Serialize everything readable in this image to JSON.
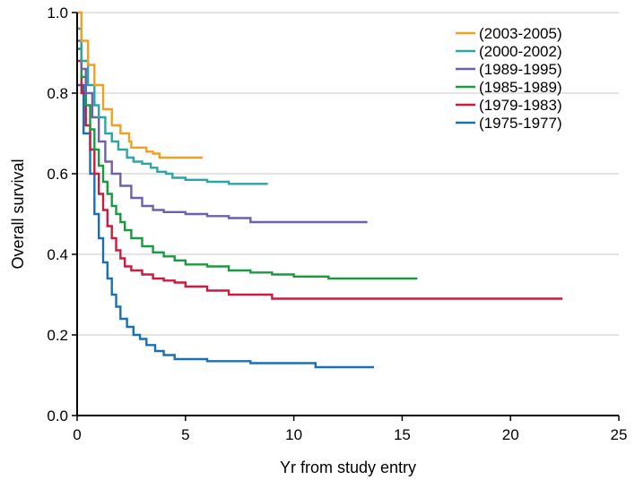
{
  "chart_data": {
    "type": "line",
    "step": true,
    "title": "",
    "xlabel": "Yr from study entry",
    "ylabel": "Overall survival",
    "xlim": [
      0,
      25
    ],
    "ylim": [
      0,
      1.0
    ],
    "xticks": [
      0,
      5,
      10,
      15,
      20,
      25
    ],
    "yticks": [
      0.0,
      0.2,
      0.4,
      0.6,
      0.8,
      1.0
    ],
    "xtick_labels": [
      "0",
      "5",
      "10",
      "15",
      "20",
      "25"
    ],
    "ytick_labels": [
      "0.0",
      "0.2",
      "0.4",
      "0.6",
      "0.8",
      "1.0"
    ],
    "grid": "horizontal",
    "legend_position": "top-right",
    "series": [
      {
        "name": "(2003-2005)",
        "color": "#f0a020",
        "x": [
          0,
          0.2,
          0.5,
          0.8,
          1.2,
          1.6,
          2.0,
          2.4,
          2.5,
          3.0,
          3.2,
          3.5,
          3.8,
          4.0,
          5.8
        ],
        "y": [
          1.0,
          0.93,
          0.87,
          0.82,
          0.76,
          0.72,
          0.7,
          0.68,
          0.665,
          0.665,
          0.655,
          0.65,
          0.64,
          0.64,
          0.64
        ]
      },
      {
        "name": "(2000-2002)",
        "color": "#2aa6a4",
        "x": [
          0,
          0.2,
          0.5,
          0.8,
          1.0,
          1.3,
          1.6,
          1.9,
          2.3,
          2.6,
          3.0,
          3.4,
          3.7,
          4.1,
          4.4,
          5.0,
          6.0,
          7.0,
          8.8
        ],
        "y": [
          0.96,
          0.88,
          0.82,
          0.77,
          0.74,
          0.7,
          0.68,
          0.66,
          0.64,
          0.63,
          0.625,
          0.615,
          0.605,
          0.6,
          0.59,
          0.585,
          0.58,
          0.575,
          0.575
        ]
      },
      {
        "name": "(1989-1995)",
        "color": "#7060aa",
        "x": [
          0,
          0.2,
          0.4,
          0.7,
          1.0,
          1.3,
          1.6,
          2.0,
          2.5,
          3.0,
          3.5,
          4.0,
          5.0,
          6.0,
          7.0,
          8.0,
          13.4
        ],
        "y": [
          0.93,
          0.86,
          0.8,
          0.74,
          0.68,
          0.63,
          0.6,
          0.57,
          0.54,
          0.52,
          0.51,
          0.505,
          0.5,
          0.495,
          0.49,
          0.48,
          0.48
        ]
      },
      {
        "name": "(1985-1989)",
        "color": "#1a9a40",
        "x": [
          0,
          0.2,
          0.4,
          0.6,
          0.8,
          1.0,
          1.2,
          1.4,
          1.6,
          1.8,
          2.0,
          2.2,
          2.5,
          3.0,
          3.5,
          4.0,
          4.5,
          5.0,
          6.0,
          7.0,
          8.0,
          9.0,
          10.0,
          11.6,
          15.7
        ],
        "y": [
          0.91,
          0.84,
          0.77,
          0.71,
          0.66,
          0.62,
          0.58,
          0.55,
          0.52,
          0.5,
          0.48,
          0.46,
          0.44,
          0.42,
          0.405,
          0.395,
          0.385,
          0.375,
          0.37,
          0.36,
          0.355,
          0.35,
          0.345,
          0.34,
          0.34
        ]
      },
      {
        "name": "(1979-1983)",
        "color": "#cc1a40",
        "x": [
          0,
          0.2,
          0.4,
          0.6,
          0.8,
          1.0,
          1.2,
          1.4,
          1.6,
          1.8,
          2.0,
          2.2,
          2.5,
          3.0,
          3.5,
          4.0,
          4.5,
          5.0,
          6.0,
          7.0,
          9.0,
          22.4
        ],
        "y": [
          0.88,
          0.8,
          0.72,
          0.66,
          0.6,
          0.55,
          0.51,
          0.47,
          0.44,
          0.41,
          0.39,
          0.37,
          0.36,
          0.35,
          0.34,
          0.335,
          0.33,
          0.32,
          0.31,
          0.3,
          0.29,
          0.29
        ]
      },
      {
        "name": "(1975-1977)",
        "color": "#1a70b4",
        "x": [
          0,
          0.3,
          0.6,
          0.8,
          1.0,
          1.2,
          1.4,
          1.6,
          1.8,
          2.0,
          2.3,
          2.6,
          2.9,
          3.2,
          3.6,
          4.0,
          4.5,
          5.0,
          6.0,
          8.0,
          11.0,
          13.7
        ],
        "y": [
          0.82,
          0.7,
          0.6,
          0.5,
          0.44,
          0.38,
          0.34,
          0.3,
          0.27,
          0.24,
          0.22,
          0.2,
          0.19,
          0.175,
          0.16,
          0.15,
          0.14,
          0.14,
          0.135,
          0.13,
          0.12,
          0.12
        ]
      }
    ]
  }
}
